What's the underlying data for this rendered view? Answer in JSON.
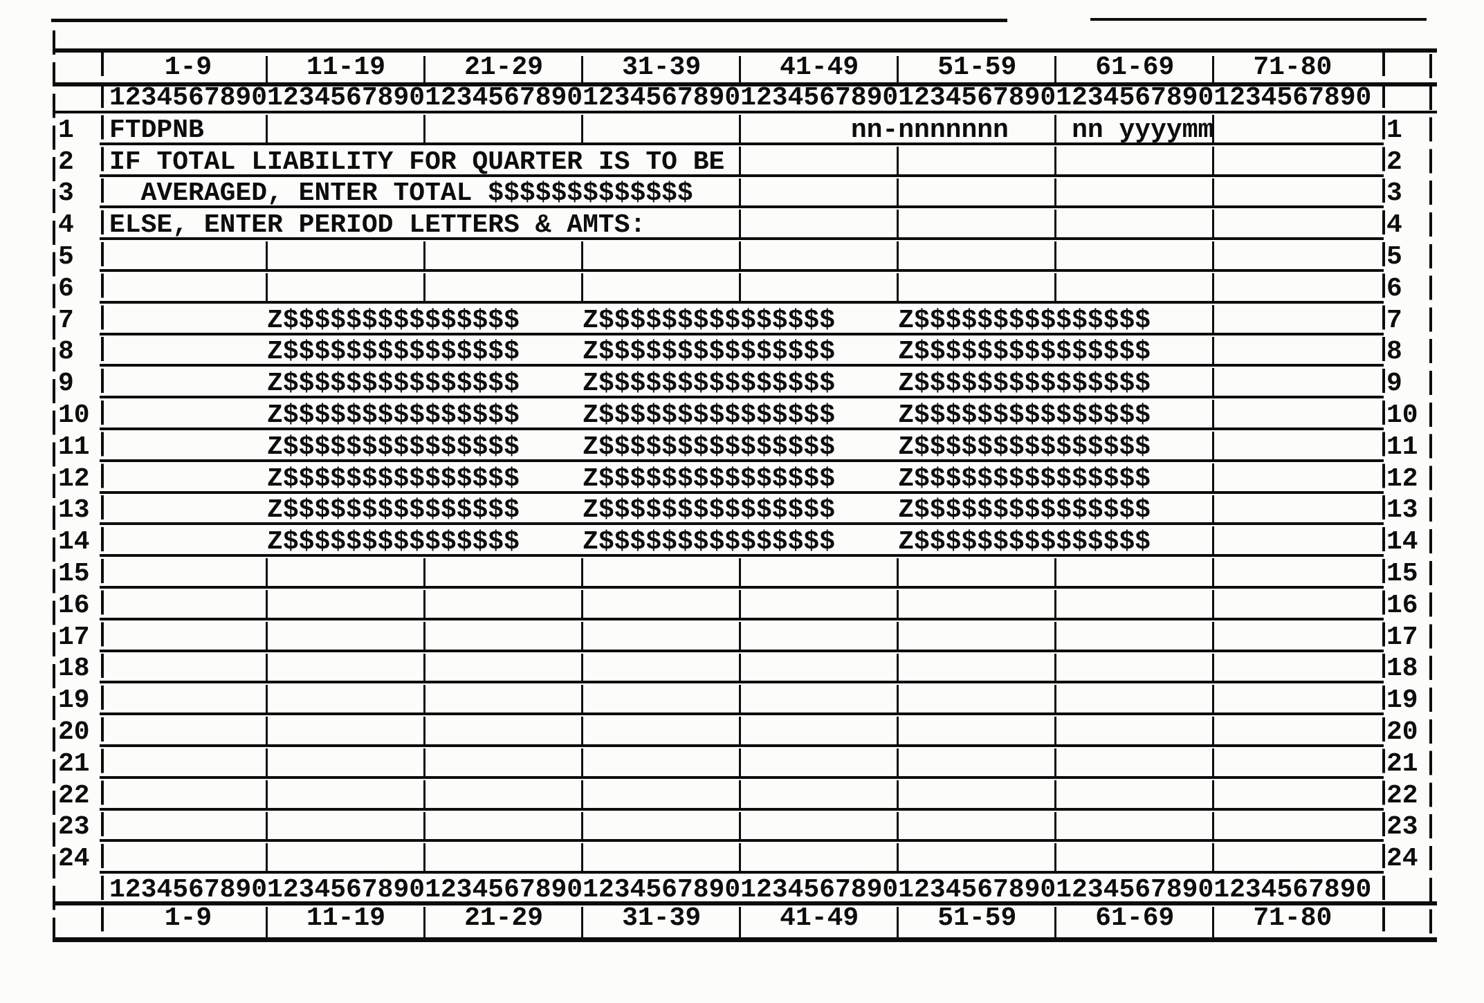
{
  "document": {
    "kind": "80-column screen layout chart",
    "column_group_labels": [
      "1-9",
      "11-19",
      "21-29",
      "31-39",
      "41-49",
      "51-59",
      "61-69",
      "71-80"
    ],
    "ruler_digits": "12345678901234567890123456789012345678901234567890123456789012345678901234567890",
    "rows": [
      {
        "num": "1",
        "ticks": [
          10,
          20,
          30,
          40,
          60,
          70
        ],
        "segments": [
          {
            "col": 1,
            "text": "FTDPNB"
          },
          {
            "col": 48,
            "text": "nn-nnnnnnn"
          },
          {
            "col": 62,
            "text": "nn yyyymm"
          }
        ]
      },
      {
        "num": "2",
        "ticks": [
          40,
          50,
          60,
          70
        ],
        "segments": [
          {
            "col": 1,
            "text": "IF TOTAL LIABILITY FOR QUARTER IS TO BE"
          }
        ]
      },
      {
        "num": "3",
        "ticks": [
          40,
          50,
          60,
          70
        ],
        "segments": [
          {
            "col": 3,
            "text": "AVERAGED, ENTER TOTAL $$$$$$$$$$$$$"
          }
        ]
      },
      {
        "num": "4",
        "ticks": [
          40,
          50,
          60,
          70
        ],
        "segments": [
          {
            "col": 1,
            "text": "ELSE, ENTER PERIOD LETTERS & AMTS:"
          }
        ]
      },
      {
        "num": "5",
        "ticks": [
          10,
          20,
          30,
          40,
          50,
          60,
          70
        ],
        "segments": []
      },
      {
        "num": "6",
        "ticks": [
          10,
          20,
          30,
          40,
          50,
          60,
          70
        ],
        "segments": []
      },
      {
        "num": "7",
        "ticks": [
          70
        ],
        "segments": [
          {
            "col": 11,
            "text": "Z$$$$$$$$$$$$$$$"
          },
          {
            "col": 31,
            "text": "Z$$$$$$$$$$$$$$$"
          },
          {
            "col": 51,
            "text": "Z$$$$$$$$$$$$$$$"
          }
        ]
      },
      {
        "num": "8",
        "ticks": [
          70
        ],
        "segments": [
          {
            "col": 11,
            "text": "Z$$$$$$$$$$$$$$$"
          },
          {
            "col": 31,
            "text": "Z$$$$$$$$$$$$$$$"
          },
          {
            "col": 51,
            "text": "Z$$$$$$$$$$$$$$$"
          }
        ]
      },
      {
        "num": "9",
        "ticks": [
          70
        ],
        "segments": [
          {
            "col": 11,
            "text": "Z$$$$$$$$$$$$$$$"
          },
          {
            "col": 31,
            "text": "Z$$$$$$$$$$$$$$$"
          },
          {
            "col": 51,
            "text": "Z$$$$$$$$$$$$$$$"
          }
        ]
      },
      {
        "num": "10",
        "ticks": [
          70
        ],
        "segments": [
          {
            "col": 11,
            "text": "Z$$$$$$$$$$$$$$$"
          },
          {
            "col": 31,
            "text": "Z$$$$$$$$$$$$$$$"
          },
          {
            "col": 51,
            "text": "Z$$$$$$$$$$$$$$$"
          }
        ]
      },
      {
        "num": "11",
        "ticks": [
          70
        ],
        "segments": [
          {
            "col": 11,
            "text": "Z$$$$$$$$$$$$$$$"
          },
          {
            "col": 31,
            "text": "Z$$$$$$$$$$$$$$$"
          },
          {
            "col": 51,
            "text": "Z$$$$$$$$$$$$$$$"
          }
        ]
      },
      {
        "num": "12",
        "ticks": [
          70
        ],
        "segments": [
          {
            "col": 11,
            "text": "Z$$$$$$$$$$$$$$$"
          },
          {
            "col": 31,
            "text": "Z$$$$$$$$$$$$$$$"
          },
          {
            "col": 51,
            "text": "Z$$$$$$$$$$$$$$$"
          }
        ]
      },
      {
        "num": "13",
        "ticks": [
          70
        ],
        "segments": [
          {
            "col": 11,
            "text": "Z$$$$$$$$$$$$$$$"
          },
          {
            "col": 31,
            "text": "Z$$$$$$$$$$$$$$$"
          },
          {
            "col": 51,
            "text": "Z$$$$$$$$$$$$$$$"
          }
        ]
      },
      {
        "num": "14",
        "ticks": [
          70
        ],
        "segments": [
          {
            "col": 11,
            "text": "Z$$$$$$$$$$$$$$$"
          },
          {
            "col": 31,
            "text": "Z$$$$$$$$$$$$$$$"
          },
          {
            "col": 51,
            "text": "Z$$$$$$$$$$$$$$$"
          }
        ]
      },
      {
        "num": "15",
        "ticks": [
          10,
          20,
          30,
          40,
          50,
          60,
          70
        ],
        "segments": []
      },
      {
        "num": "16",
        "ticks": [
          10,
          20,
          30,
          40,
          50,
          60,
          70
        ],
        "segments": []
      },
      {
        "num": "17",
        "ticks": [
          10,
          20,
          30,
          40,
          50,
          60,
          70
        ],
        "segments": []
      },
      {
        "num": "18",
        "ticks": [
          10,
          20,
          30,
          40,
          50,
          60,
          70
        ],
        "segments": []
      },
      {
        "num": "19",
        "ticks": [
          10,
          20,
          30,
          40,
          50,
          60,
          70
        ],
        "segments": []
      },
      {
        "num": "20",
        "ticks": [
          10,
          20,
          30,
          40,
          50,
          60,
          70
        ],
        "segments": []
      },
      {
        "num": "21",
        "ticks": [
          10,
          20,
          30,
          40,
          50,
          60,
          70
        ],
        "segments": []
      },
      {
        "num": "22",
        "ticks": [
          10,
          20,
          30,
          40,
          50,
          60,
          70
        ],
        "segments": []
      },
      {
        "num": "23",
        "ticks": [
          10,
          20,
          30,
          40,
          50,
          60,
          70
        ],
        "segments": []
      },
      {
        "num": "24",
        "ticks": [
          10,
          20,
          30,
          40,
          50,
          60,
          70
        ],
        "segments": []
      }
    ],
    "ink_color": "#0d0d0d",
    "paper_color": "#fcfcfa"
  }
}
